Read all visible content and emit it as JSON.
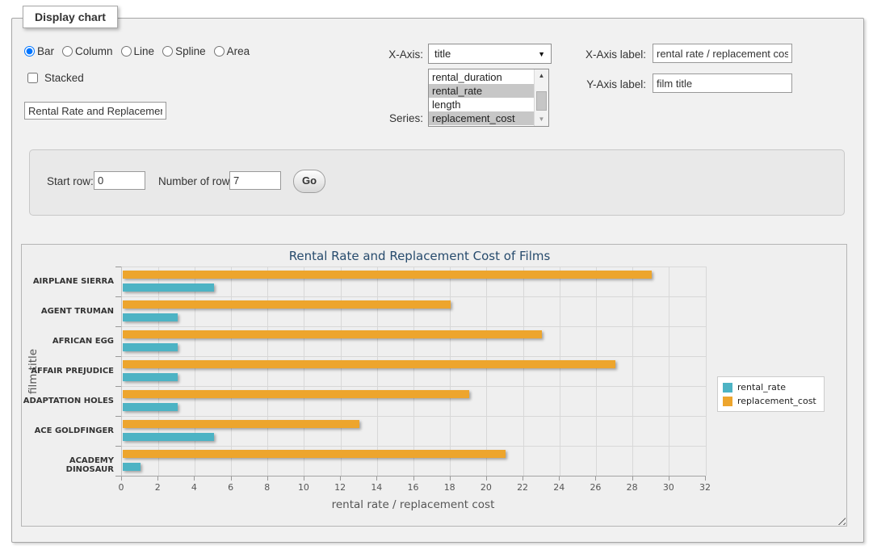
{
  "panel": {
    "legend": "Display chart"
  },
  "controls": {
    "chart_types": [
      {
        "label": "Bar",
        "selected": true
      },
      {
        "label": "Column",
        "selected": false
      },
      {
        "label": "Line",
        "selected": false
      },
      {
        "label": "Spline",
        "selected": false
      },
      {
        "label": "Area",
        "selected": false
      }
    ],
    "stacked": {
      "label": "Stacked",
      "checked": false
    },
    "title_input": {
      "value": "Rental Rate and Replacement Cost of Films"
    },
    "x_axis": {
      "label": "X-Axis:",
      "selected": "title"
    },
    "series": {
      "label": "Series:",
      "options": [
        {
          "label": "rental_duration",
          "selected": false
        },
        {
          "label": "rental_rate",
          "selected": true
        },
        {
          "label": "length",
          "selected": false
        },
        {
          "label": "replacement_cost",
          "selected": true
        }
      ]
    },
    "x_axis_label": {
      "label": "X-Axis label:",
      "value": "rental rate / replacement cost"
    },
    "y_axis_label": {
      "label": "Y-Axis label:",
      "value": "film title"
    },
    "start_row": {
      "label": "Start row:",
      "value": "0"
    },
    "num_rows": {
      "label": "Number of rows:",
      "value": "7"
    },
    "go_button": "Go"
  },
  "chart_data": {
    "type": "bar",
    "title": "Rental Rate and Replacement Cost of Films",
    "categories": [
      "AIRPLANE SIERRA",
      "AGENT TRUMAN",
      "AFRICAN EGG",
      "AFFAIR PREJUDICE",
      "ADAPTATION HOLES",
      "ACE GOLDFINGER",
      "ACADEMY DINOSAUR"
    ],
    "series": [
      {
        "name": "rental_rate",
        "color": "#4DB3C4",
        "values": [
          4.99,
          2.99,
          2.99,
          2.99,
          2.99,
          4.99,
          0.99
        ]
      },
      {
        "name": "replacement_cost",
        "color": "#EDA52D",
        "values": [
          28.99,
          17.99,
          22.99,
          26.99,
          18.99,
          12.99,
          20.99
        ]
      }
    ],
    "xlabel": "rental rate / replacement cost",
    "ylabel": "film title",
    "xlim": [
      0,
      32
    ],
    "x_tick_step": 2,
    "grid": true,
    "legend_position": "right",
    "note": "horizontal grouped bars; within each category replacement_cost bar is drawn above rental_rate bar"
  }
}
